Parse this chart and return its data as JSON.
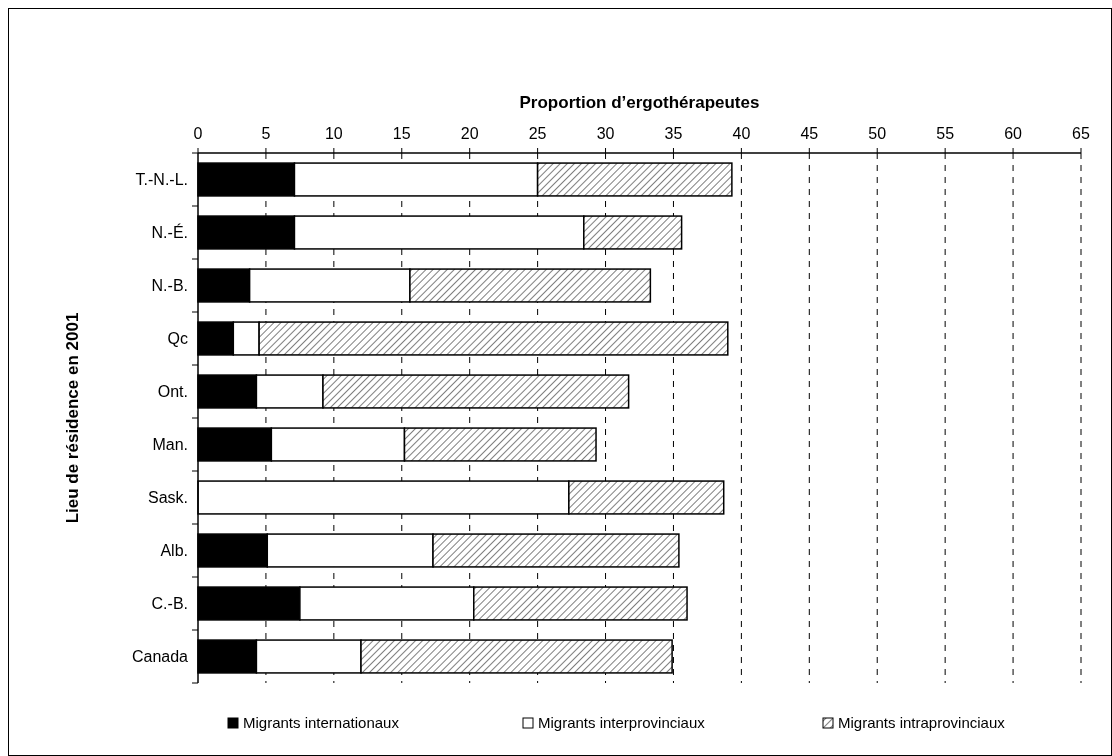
{
  "chart_data": {
    "type": "bar",
    "orientation": "horizontal",
    "stacked": true,
    "xlabel": "Proportion d’ergothérapeutes",
    "ylabel": "Lieu de résidence en 2001",
    "categories": [
      "T.-N.-L.",
      "N.-É.",
      "N.-B.",
      "Qc",
      "Ont.",
      "Man.",
      "Sask.",
      "Alb.",
      "C.-B.",
      "Canada"
    ],
    "series": [
      {
        "name": "Migrants internationaux",
        "color": "#000000",
        "values": [
          7.1,
          7.1,
          3.8,
          2.6,
          4.3,
          5.4,
          0,
          5.1,
          7.5,
          4.3
        ]
      },
      {
        "name": "Migrants interprovinciaux",
        "color": "#ffffff",
        "values": [
          17.9,
          21.3,
          11.8,
          1.9,
          4.9,
          9.8,
          27.3,
          12.2,
          12.8,
          7.7
        ]
      },
      {
        "name": "Migrants intraprovinciaux",
        "color": "#000000",
        "values": [
          14.3,
          7.2,
          17.7,
          34.5,
          22.5,
          14.1,
          11.4,
          18.1,
          15.7,
          22.9
        ]
      }
    ],
    "xlim": [
      0,
      65
    ],
    "xticks": [
      0,
      5,
      10,
      15,
      20,
      25,
      30,
      35,
      40,
      45,
      50,
      55,
      60,
      65
    ],
    "grid": "x",
    "legend": "bottom"
  }
}
